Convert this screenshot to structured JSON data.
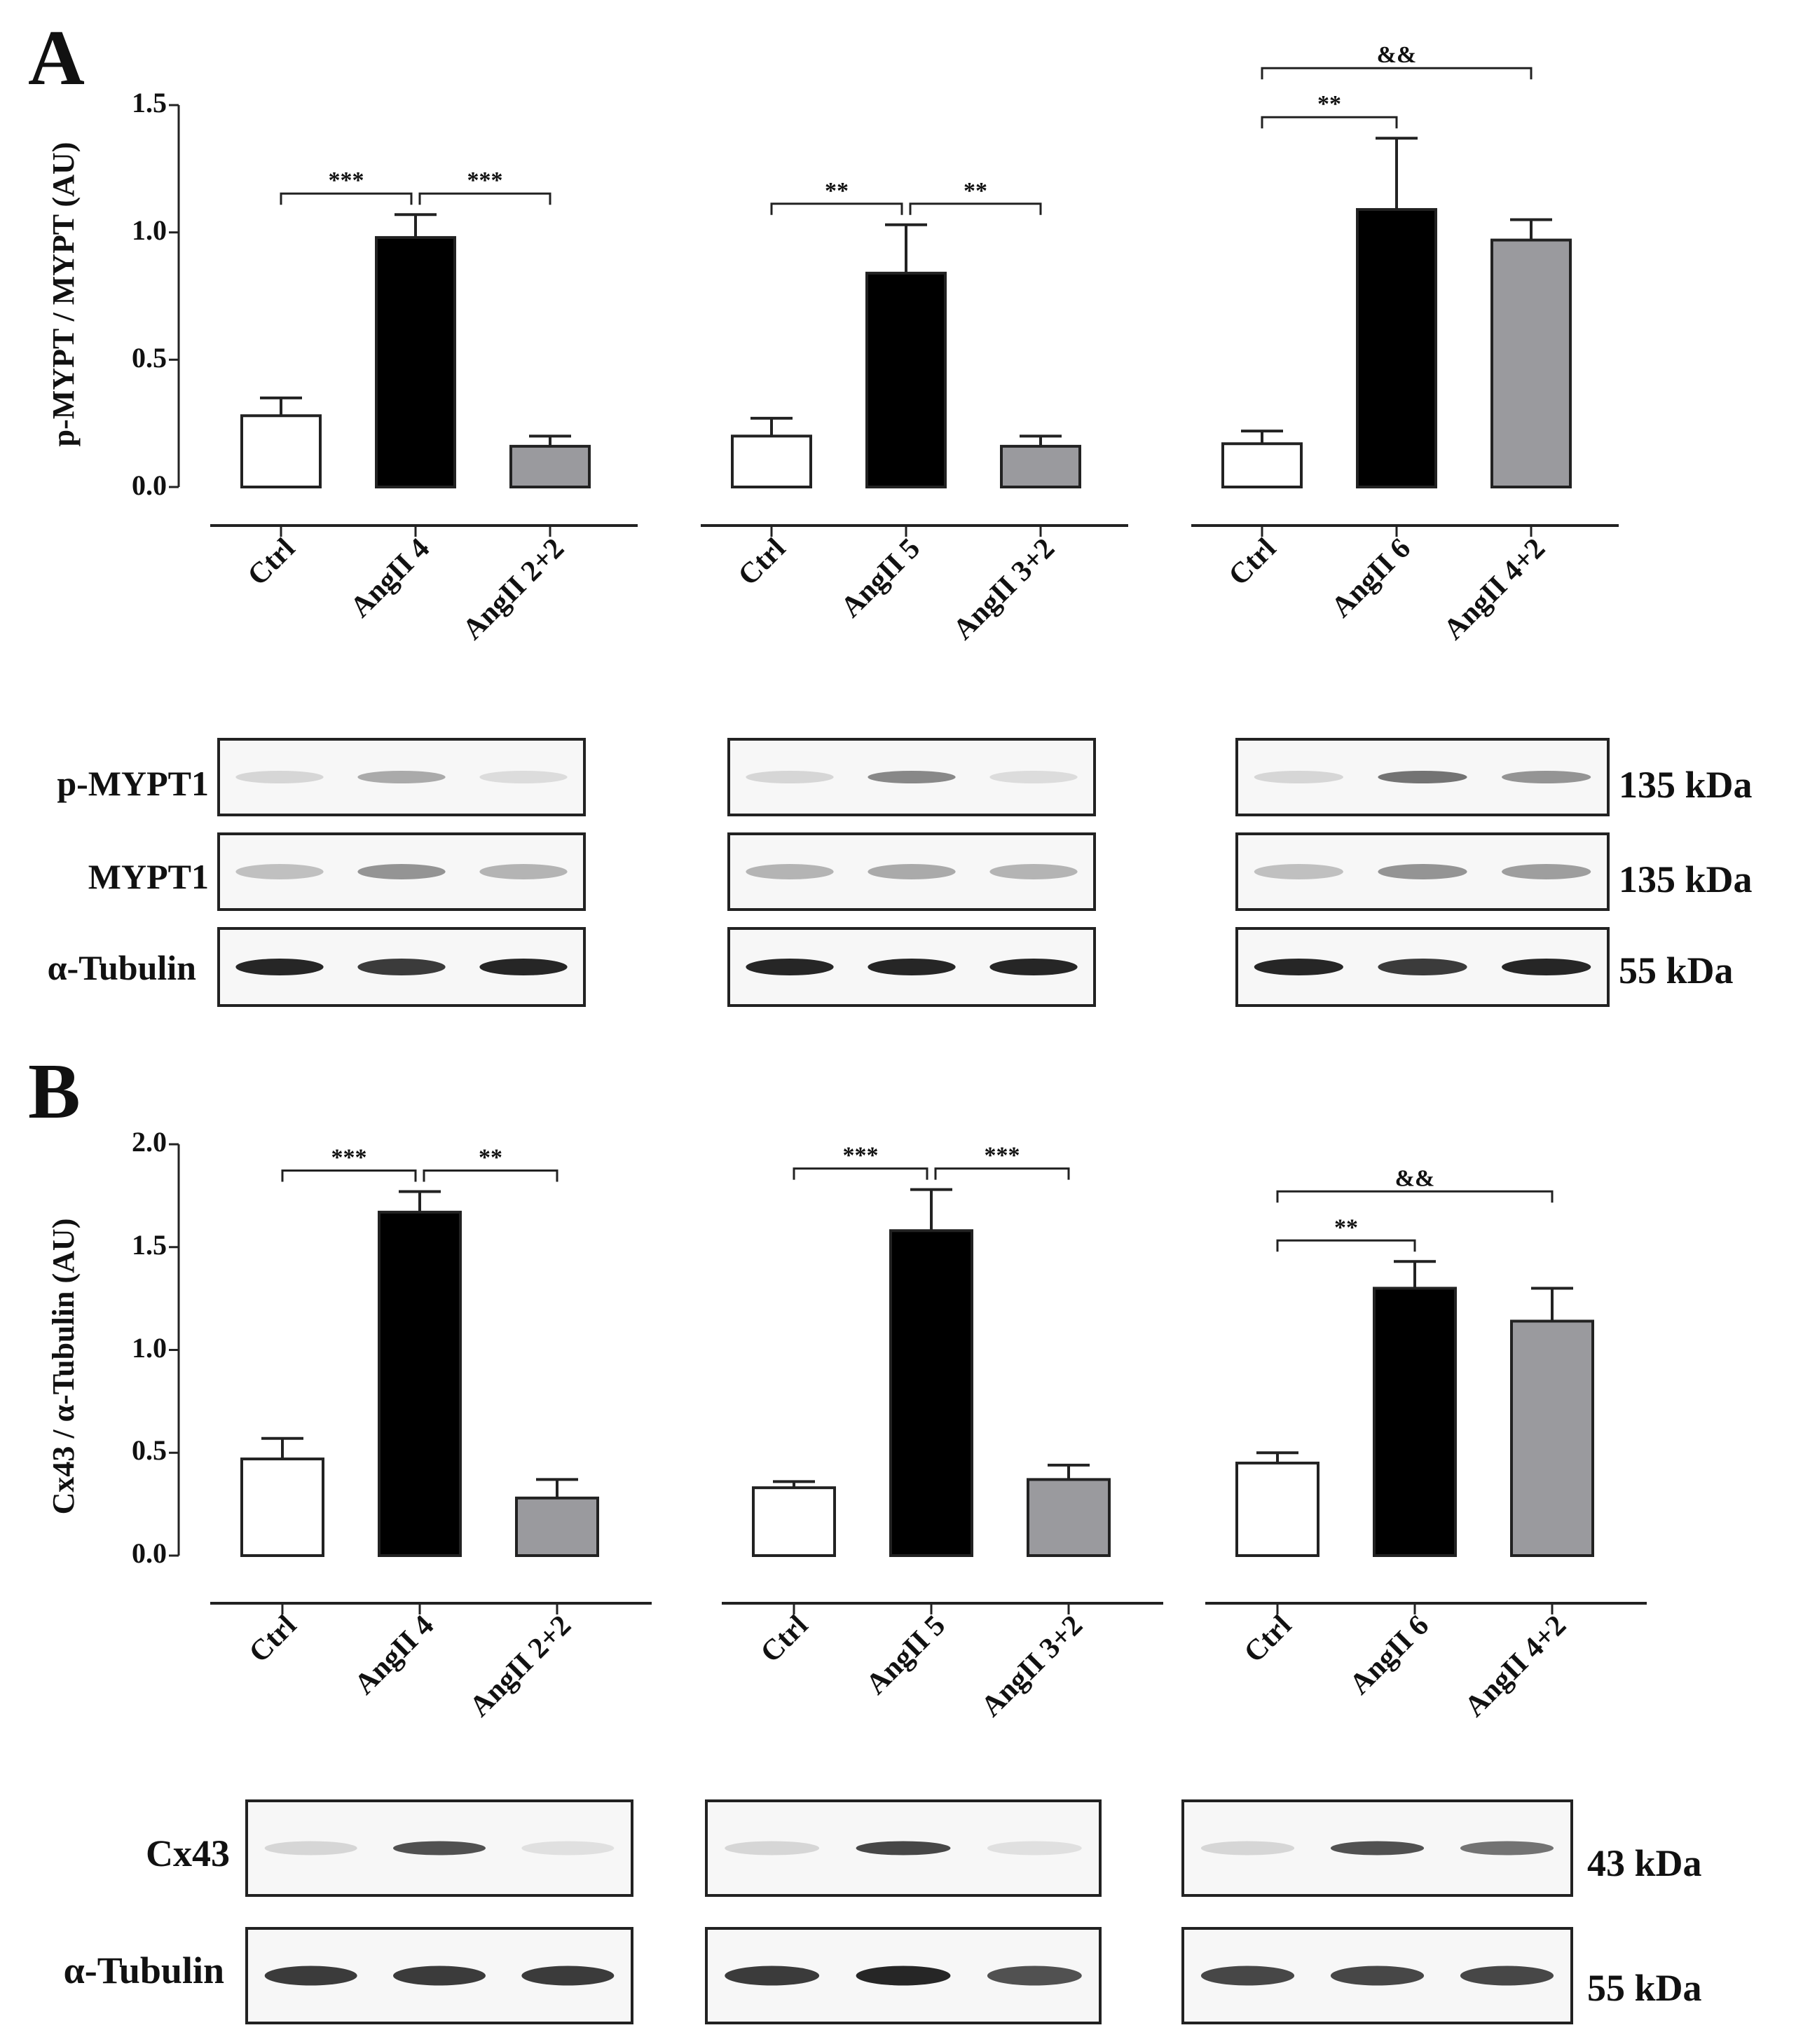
{
  "panels": {
    "A": {
      "letter": "A",
      "ylabel": "p-MYPT / MYPT (AU)",
      "ytick_labels": [
        "0.0",
        "0.5",
        "1.0",
        "1.5"
      ],
      "blot_rows": [
        {
          "label": "p-MYPT1",
          "size": "135 kDa"
        },
        {
          "label": "MYPT1",
          "size": "135 kDa"
        },
        {
          "label": "α-Tubulin",
          "size": "55 kDa"
        }
      ]
    },
    "B": {
      "letter": "B",
      "ylabel": "Cx43 / α-Tubulin (AU)",
      "ytick_labels": [
        "0.0",
        "0.5",
        "1.0",
        "1.5",
        "2.0"
      ],
      "blot_rows": [
        {
          "label": "Cx43",
          "size": "43 kDa"
        },
        {
          "label": "α-Tubulin",
          "size": "55 kDa"
        }
      ]
    }
  },
  "colors": {
    "ctrl": "#ffffff",
    "angii": "#000000",
    "combo": "#9a9a9e",
    "axis": "#222222",
    "band": "#1a1a1a"
  },
  "chart_data": [
    {
      "type": "bar",
      "panel": "A",
      "ylabel": "p-MYPT / MYPT (AU)",
      "ylim": [
        0,
        1.5
      ],
      "yticks": [
        0,
        0.5,
        1.0,
        1.5
      ],
      "groups": [
        {
          "categories": [
            "Ctrl",
            "AngII 4",
            "AngII 2+2"
          ],
          "values": [
            0.28,
            0.98,
            0.16
          ],
          "errors": [
            0.07,
            0.09,
            0.04
          ],
          "sig": [
            {
              "from": 0,
              "to": 1,
              "label": "***",
              "level": 0
            },
            {
              "from": 1,
              "to": 2,
              "label": "***",
              "level": 0
            }
          ]
        },
        {
          "categories": [
            "Ctrl",
            "AngII 5",
            "AngII 3+2"
          ],
          "values": [
            0.2,
            0.84,
            0.16
          ],
          "errors": [
            0.07,
            0.19,
            0.04
          ],
          "sig": [
            {
              "from": 0,
              "to": 1,
              "label": "**",
              "level": 0
            },
            {
              "from": 1,
              "to": 2,
              "label": "**",
              "level": 0
            }
          ]
        },
        {
          "categories": [
            "Ctrl",
            "AngII 6",
            "AngII 4+2"
          ],
          "values": [
            0.17,
            1.09,
            0.97
          ],
          "errors": [
            0.05,
            0.28,
            0.08
          ],
          "sig": [
            {
              "from": 0,
              "to": 1,
              "label": "**",
              "level": 0
            },
            {
              "from": 0,
              "to": 2,
              "label": "&&",
              "level": 1
            }
          ]
        }
      ]
    },
    {
      "type": "bar",
      "panel": "B",
      "ylabel": "Cx43 / α-Tubulin (AU)",
      "ylim": [
        0,
        2.0
      ],
      "yticks": [
        0,
        0.5,
        1.0,
        1.5,
        2.0
      ],
      "groups": [
        {
          "categories": [
            "Ctrl",
            "AngII 4",
            "AngII 2+2"
          ],
          "values": [
            0.47,
            1.67,
            0.28
          ],
          "errors": [
            0.1,
            0.1,
            0.09
          ],
          "sig": [
            {
              "from": 0,
              "to": 1,
              "label": "***",
              "level": 0
            },
            {
              "from": 1,
              "to": 2,
              "label": "**",
              "level": 0
            }
          ]
        },
        {
          "categories": [
            "Ctrl",
            "AngII 5",
            "AngII 3+2"
          ],
          "values": [
            0.33,
            1.58,
            0.37
          ],
          "errors": [
            0.03,
            0.2,
            0.07
          ],
          "sig": [
            {
              "from": 0,
              "to": 1,
              "label": "***",
              "level": 0
            },
            {
              "from": 1,
              "to": 2,
              "label": "***",
              "level": 0
            }
          ]
        },
        {
          "categories": [
            "Ctrl",
            "AngII 6",
            "AngII 4+2"
          ],
          "values": [
            0.45,
            1.3,
            1.14
          ],
          "errors": [
            0.05,
            0.13,
            0.16
          ],
          "sig": [
            {
              "from": 0,
              "to": 1,
              "label": "**",
              "level": 0
            },
            {
              "from": 0,
              "to": 2,
              "label": "&&",
              "level": 1
            }
          ]
        }
      ]
    }
  ]
}
